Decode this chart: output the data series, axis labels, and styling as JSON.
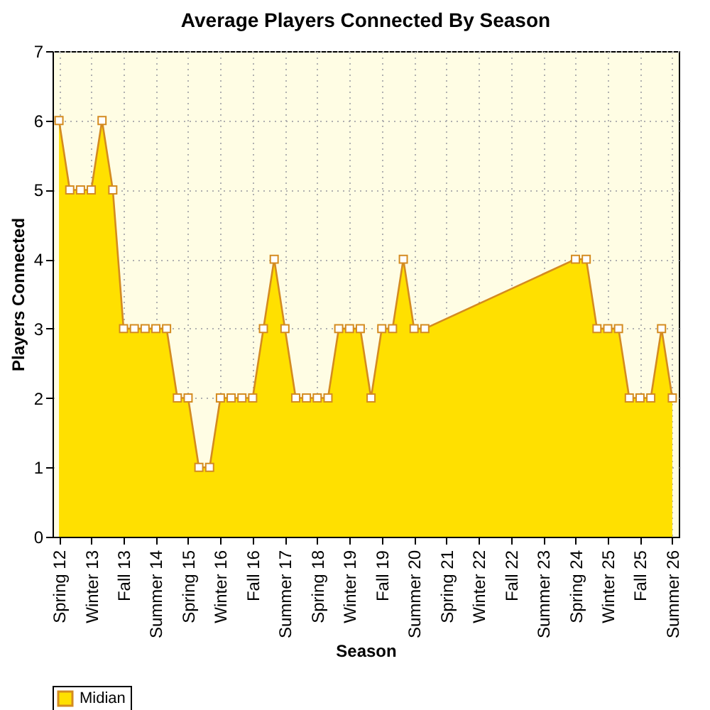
{
  "chart_data": {
    "type": "area",
    "title": "Average Players Connected By Season",
    "xlabel": "Season",
    "ylabel": "Players Connected",
    "categories": [
      "Spring 12",
      null,
      null,
      "Winter 13",
      null,
      null,
      "Fall 13",
      null,
      null,
      "Summer 14",
      null,
      null,
      "Spring 15",
      null,
      null,
      "Winter 16",
      null,
      null,
      "Fall 16",
      null,
      null,
      "Summer 17",
      null,
      null,
      "Spring 18",
      null,
      null,
      "Winter 19",
      null,
      null,
      "Fall 19",
      null,
      null,
      "Summer 20",
      null,
      null,
      "Spring 21",
      null,
      null,
      "Winter 22",
      null,
      null,
      "Fall 22",
      null,
      null,
      "Summer 23",
      null,
      null,
      "Spring 24",
      null,
      null,
      "Winter 25",
      null,
      null,
      "Fall 25",
      null,
      null,
      "Summer 26"
    ],
    "series": [
      {
        "name": "Midian",
        "color": "#ffe000",
        "values": [
          6,
          5,
          5,
          5,
          6,
          5,
          3,
          3,
          3,
          3,
          3,
          2,
          2,
          1,
          1,
          2,
          2,
          2,
          2,
          3,
          4,
          3,
          2,
          2,
          2,
          2,
          3,
          3,
          3,
          2,
          3,
          3,
          4,
          3,
          3,
          null,
          null,
          null,
          null,
          null,
          null,
          null,
          null,
          null,
          null,
          null,
          null,
          null,
          4,
          4,
          3,
          3,
          3,
          2,
          2,
          2,
          3,
          2
        ]
      }
    ],
    "ylim": [
      0,
      7
    ],
    "yticks": [
      0,
      1,
      2,
      3,
      4,
      5,
      6,
      7
    ],
    "grid": true,
    "legend": "bottom left",
    "marker": "square"
  }
}
